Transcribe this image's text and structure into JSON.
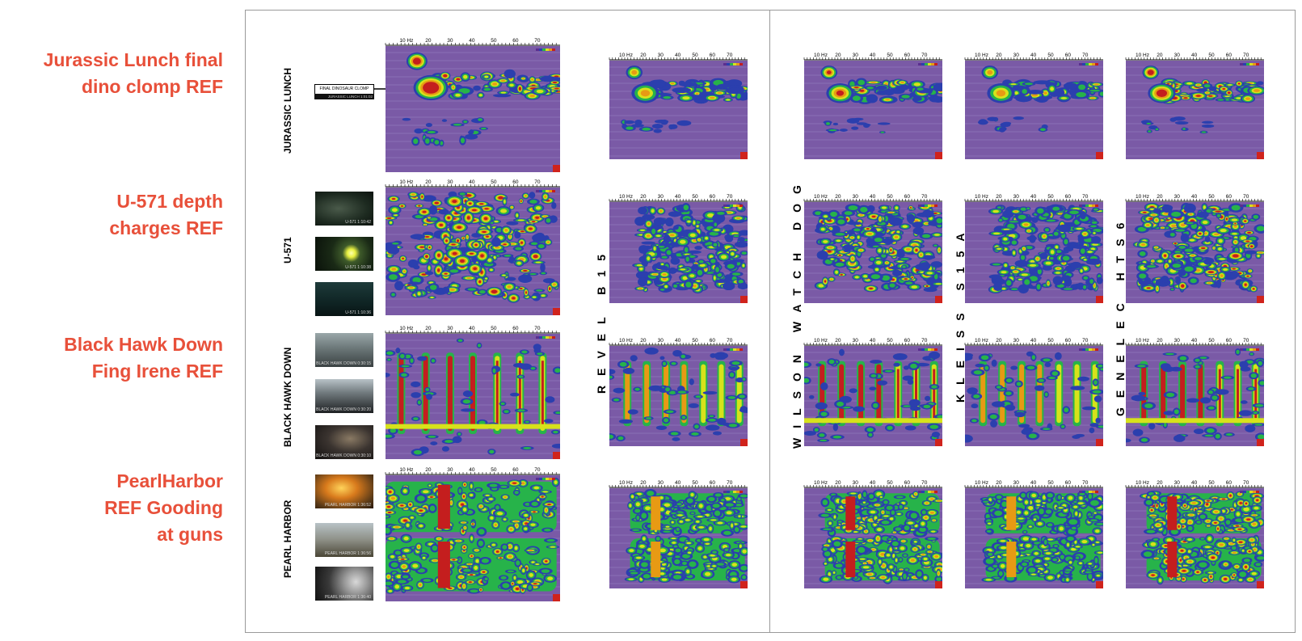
{
  "rows": [
    {
      "ref_title": [
        "Jurassic Lunch final",
        "dino clomp REF"
      ],
      "film_label": "JURASSIC LUNCH",
      "style": "jurassic"
    },
    {
      "ref_title": [
        "U-571 depth",
        "charges REF"
      ],
      "film_label": "U-571",
      "style": "u571"
    },
    {
      "ref_title": [
        "Black Hawk Down",
        "Fing Irene REF"
      ],
      "film_label": "BLACK HAWK DOWN",
      "style": "bhd"
    },
    {
      "ref_title": [
        "PearlHarbor",
        "REF Gooding",
        "at guns"
      ],
      "film_label": "PEARL HARBOR",
      "style": "pearl"
    }
  ],
  "thumbnails": [
    {
      "caption": "U-571   1:10:42"
    },
    {
      "caption": "U-571   1:10:38"
    },
    {
      "caption": "U-571   1:10:36"
    },
    {
      "caption": "BLACK HAWK DOWN   0:30:15"
    },
    {
      "caption": "BLACK HAWK DOWN   0:30:20"
    },
    {
      "caption": "BLACK HAWK DOWN   0:30:10"
    },
    {
      "caption": "PEARL HARBOR   1:36:52"
    },
    {
      "caption": "PEARL HARBOR   1:36:56"
    },
    {
      "caption": "PEARL HARBOR   1:36:40"
    }
  ],
  "callout": {
    "label": "FINAL DINOSAUR CLOMP",
    "timecode": "JURASSIC LUNCH   1:01:02"
  },
  "speakers": [
    "REVEL B15",
    "WILSON WATCH DOG",
    "KLEISS S15A",
    "GENELEC HTS6"
  ],
  "axis": {
    "first_label": "10 Hz",
    "tick_labels": [
      "20",
      "30",
      "40",
      "50",
      "60",
      "70"
    ]
  },
  "colors": {
    "title_red": "#e8503a",
    "background_purple": "#7a5aa6",
    "scale": [
      "#5b2f8f",
      "#2b3fae",
      "#27b34a",
      "#d7e21b",
      "#e79a14",
      "#c41e1e"
    ]
  }
}
